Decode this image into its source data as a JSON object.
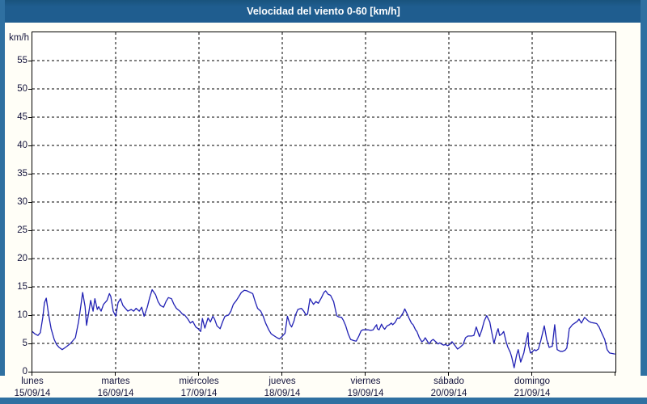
{
  "title_bar": {
    "text": "Velocidad del viento 0-60 [km/h]"
  },
  "colors": {
    "title_bar_bg": "#1f5d8f",
    "title_text": "#ffffff",
    "window_frame": "#2f70a1",
    "page_bg": "#fffef7",
    "plot_bg": "#ffffff",
    "grid": "#000000",
    "axis_text": "#14143c",
    "series_line": "#2121b4"
  },
  "axes": {
    "y_unit": "km/h",
    "y_ticks": [
      0,
      5,
      10,
      15,
      20,
      25,
      30,
      35,
      40,
      45,
      50,
      55
    ],
    "x_days": [
      {
        "name": "lunes",
        "date": "15/09/14"
      },
      {
        "name": "martes",
        "date": "16/09/14"
      },
      {
        "name": "miércoles",
        "date": "17/09/14"
      },
      {
        "name": "jueves",
        "date": "18/09/14"
      },
      {
        "name": "viernes",
        "date": "19/09/14"
      },
      {
        "name": "sábado",
        "date": "20/09/14"
      },
      {
        "name": "domingo",
        "date": "21/09/14"
      }
    ]
  },
  "chart_data": {
    "type": "line",
    "title": "Velocidad del viento 0-60 [km/h]",
    "ylabel": "km/h",
    "ylim": [
      0,
      60
    ],
    "y_gridline_step": 5,
    "grid": "dashed",
    "legend": "none",
    "x_unit": "hours_from_2014-09-15_00:00",
    "x_range_hours": [
      0,
      168
    ],
    "x_day_gridlines_hours": [
      24,
      48,
      72,
      96,
      120,
      144
    ],
    "series": [
      {
        "name": "velocidad del viento (km/h)",
        "points": [
          [
            0,
            7.1
          ],
          [
            0.7,
            6.7
          ],
          [
            1.6,
            6.4
          ],
          [
            2.3,
            6.9
          ],
          [
            3,
            9.6
          ],
          [
            3.5,
            12.2
          ],
          [
            4,
            13
          ],
          [
            4.7,
            10
          ],
          [
            5.4,
            7.6
          ],
          [
            6.3,
            5.7
          ],
          [
            7,
            4.8
          ],
          [
            7.7,
            4.3
          ],
          [
            8.6,
            3.9
          ],
          [
            9.3,
            4.2
          ],
          [
            10,
            4.5
          ],
          [
            11,
            5
          ],
          [
            11.7,
            5.5
          ],
          [
            12.4,
            6
          ],
          [
            13.3,
            8.8
          ],
          [
            14,
            11.8
          ],
          [
            14.5,
            14
          ],
          [
            15.2,
            11.5
          ],
          [
            15.6,
            8.2
          ],
          [
            16.3,
            10.7
          ],
          [
            16.8,
            12.6
          ],
          [
            17.5,
            10.7
          ],
          [
            18,
            12.9
          ],
          [
            18.7,
            11
          ],
          [
            19.1,
            11.5
          ],
          [
            19.8,
            10.7
          ],
          [
            20.5,
            11.9
          ],
          [
            21.5,
            12.6
          ],
          [
            22.2,
            13.8
          ],
          [
            22.6,
            13.3
          ],
          [
            23.3,
            10.7
          ],
          [
            24,
            9.8
          ],
          [
            24.7,
            12.2
          ],
          [
            25.4,
            12.9
          ],
          [
            26.1,
            11.7
          ],
          [
            26.8,
            11.2
          ],
          [
            27.5,
            10.7
          ],
          [
            28.5,
            11
          ],
          [
            29.2,
            10.7
          ],
          [
            29.9,
            11.2
          ],
          [
            30.8,
            10.7
          ],
          [
            31.5,
            11.4
          ],
          [
            32.2,
            9.8
          ],
          [
            33.1,
            11.4
          ],
          [
            33.8,
            13.1
          ],
          [
            34.5,
            14.5
          ],
          [
            35.5,
            13.6
          ],
          [
            36.2,
            12.4
          ],
          [
            36.9,
            11.7
          ],
          [
            37.8,
            11.4
          ],
          [
            38.5,
            12.4
          ],
          [
            39.2,
            13.1
          ],
          [
            40.1,
            12.9
          ],
          [
            40.8,
            11.9
          ],
          [
            41.5,
            11.2
          ],
          [
            42.5,
            10.7
          ],
          [
            43.2,
            10.2
          ],
          [
            43.9,
            10
          ],
          [
            44.8,
            9.3
          ],
          [
            45.5,
            8.6
          ],
          [
            46.2,
            8.9
          ],
          [
            47.1,
            7.9
          ],
          [
            47.8,
            7.6
          ],
          [
            48.5,
            7.1
          ],
          [
            49,
            9.4
          ],
          [
            49.7,
            7.7
          ],
          [
            50.6,
            9.5
          ],
          [
            51.3,
            8.8
          ],
          [
            52,
            9.8
          ],
          [
            52.5,
            9.3
          ],
          [
            53.2,
            8.1
          ],
          [
            54.1,
            7.6
          ],
          [
            54.8,
            8.8
          ],
          [
            55.5,
            9.8
          ],
          [
            56.5,
            10
          ],
          [
            57.2,
            10.7
          ],
          [
            57.9,
            11.9
          ],
          [
            58.8,
            12.6
          ],
          [
            59.5,
            13.3
          ],
          [
            60.2,
            14
          ],
          [
            61.1,
            14.4
          ],
          [
            61.8,
            14.3
          ],
          [
            62.5,
            14.1
          ],
          [
            63.5,
            13.8
          ],
          [
            64.2,
            12.4
          ],
          [
            64.9,
            11.2
          ],
          [
            65.8,
            10.7
          ],
          [
            66.5,
            9.8
          ],
          [
            67.2,
            8.6
          ],
          [
            68.1,
            7.4
          ],
          [
            68.8,
            6.7
          ],
          [
            69.5,
            6.4
          ],
          [
            70.5,
            6
          ],
          [
            71.2,
            5.8
          ],
          [
            71.9,
            6.2
          ],
          [
            72.8,
            6.8
          ],
          [
            73.5,
            9.8
          ],
          [
            74.2,
            8.4
          ],
          [
            74.7,
            7.9
          ],
          [
            75.4,
            9
          ],
          [
            75.8,
            10
          ],
          [
            76.5,
            11
          ],
          [
            77.5,
            11.2
          ],
          [
            78.2,
            10.7
          ],
          [
            78.9,
            10
          ],
          [
            79.3,
            10.2
          ],
          [
            80,
            12.9
          ],
          [
            81,
            11.9
          ],
          [
            81.7,
            12.4
          ],
          [
            82.4,
            12.1
          ],
          [
            83.3,
            13.1
          ],
          [
            84,
            14
          ],
          [
            84.5,
            14.3
          ],
          [
            85.2,
            13.7
          ],
          [
            85.9,
            13.5
          ],
          [
            86.8,
            12.4
          ],
          [
            87.3,
            11
          ],
          [
            87.7,
            9.9
          ],
          [
            88.2,
            9.7
          ],
          [
            89.1,
            9.6
          ],
          [
            89.6,
            9.1
          ],
          [
            90.3,
            8.1
          ],
          [
            91,
            6.7
          ],
          [
            91.7,
            5.7
          ],
          [
            92.6,
            5.5
          ],
          [
            93.3,
            5.4
          ],
          [
            94,
            6.2
          ],
          [
            94.7,
            7.2
          ],
          [
            95.2,
            7.4
          ],
          [
            95.9,
            7.4
          ],
          [
            96.8,
            7.4
          ],
          [
            97.5,
            7.3
          ],
          [
            98.2,
            7.4
          ],
          [
            98.7,
            7.9
          ],
          [
            99.2,
            8.3
          ],
          [
            99.4,
            7.6
          ],
          [
            99.9,
            7.4
          ],
          [
            100.6,
            8.4
          ],
          [
            101,
            7.9
          ],
          [
            101.5,
            7.5
          ],
          [
            102.2,
            8.1
          ],
          [
            102.9,
            8.3
          ],
          [
            103.4,
            8.6
          ],
          [
            103.8,
            8.3
          ],
          [
            104.5,
            8.7
          ],
          [
            105.2,
            9.5
          ],
          [
            105.7,
            9.4
          ],
          [
            106.2,
            9.8
          ],
          [
            106.9,
            10.5
          ],
          [
            107.3,
            11.1
          ],
          [
            108,
            10.2
          ],
          [
            108.5,
            9.5
          ],
          [
            109.2,
            8.6
          ],
          [
            109.7,
            8.3
          ],
          [
            110.4,
            7.4
          ],
          [
            110.8,
            7.1
          ],
          [
            111.5,
            6
          ],
          [
            112.2,
            5.3
          ],
          [
            112.7,
            5.5
          ],
          [
            113.2,
            6
          ],
          [
            113.9,
            5.3
          ],
          [
            114.3,
            4.9
          ],
          [
            115,
            5.5
          ],
          [
            115.5,
            5.7
          ],
          [
            116.2,
            5.3
          ],
          [
            116.9,
            4.9
          ],
          [
            117.4,
            5.1
          ],
          [
            118.1,
            4.8
          ],
          [
            118.5,
            4.7
          ],
          [
            119,
            4.8
          ],
          [
            119.7,
            4.6
          ],
          [
            120.2,
            4.8
          ],
          [
            120.9,
            5.3
          ],
          [
            121.8,
            4.6
          ],
          [
            122.5,
            4
          ],
          [
            123.2,
            4.3
          ],
          [
            124.1,
            4.8
          ],
          [
            124.8,
            6
          ],
          [
            125.5,
            6.3
          ],
          [
            126.5,
            6.3
          ],
          [
            127.2,
            6.4
          ],
          [
            127.9,
            7.9
          ],
          [
            128.8,
            6.2
          ],
          [
            129.5,
            7.4
          ],
          [
            130.2,
            9
          ],
          [
            130.9,
            9.9
          ],
          [
            131.8,
            8.8
          ],
          [
            132.3,
            7.1
          ],
          [
            133,
            5
          ],
          [
            133.7,
            6.7
          ],
          [
            134.2,
            7.6
          ],
          [
            134.6,
            6.4
          ],
          [
            135.3,
            6.7
          ],
          [
            135.8,
            7.1
          ],
          [
            136.5,
            5.3
          ],
          [
            137,
            4.3
          ],
          [
            137.7,
            3.4
          ],
          [
            138.1,
            2.6
          ],
          [
            138.8,
            0.7
          ],
          [
            139.5,
            2.9
          ],
          [
            140,
            3.9
          ],
          [
            140.7,
            1.7
          ],
          [
            141.2,
            2.6
          ],
          [
            141.6,
            3.3
          ],
          [
            142.3,
            5.5
          ],
          [
            142.8,
            6.9
          ],
          [
            143,
            4.6
          ],
          [
            143.5,
            3.3
          ],
          [
            144,
            3.5
          ],
          [
            144.7,
            3.9
          ],
          [
            145.1,
            3.7
          ],
          [
            145.8,
            4
          ],
          [
            146.5,
            5.5
          ],
          [
            147.5,
            8.1
          ],
          [
            148.2,
            5.7
          ],
          [
            148.9,
            4.3
          ],
          [
            149.8,
            4.5
          ],
          [
            150.5,
            8.3
          ],
          [
            151.2,
            3.9
          ],
          [
            152.1,
            3.6
          ],
          [
            152.8,
            3.6
          ],
          [
            153.5,
            3.8
          ],
          [
            154,
            4.2
          ],
          [
            154.7,
            7.6
          ],
          [
            155.6,
            8.3
          ],
          [
            156.3,
            8.6
          ],
          [
            157,
            8.9
          ],
          [
            157.5,
            9.3
          ],
          [
            158.2,
            8.6
          ],
          [
            159.1,
            9.6
          ],
          [
            160.3,
            8.9
          ],
          [
            161,
            8.7
          ],
          [
            161.9,
            8.6
          ],
          [
            162.6,
            8.5
          ],
          [
            163.3,
            7.9
          ],
          [
            164,
            6.9
          ],
          [
            164.9,
            5.7
          ],
          [
            165.6,
            3.9
          ],
          [
            166.3,
            3.3
          ],
          [
            167.2,
            3.2
          ],
          [
            167.9,
            3.1
          ]
        ]
      }
    ]
  }
}
